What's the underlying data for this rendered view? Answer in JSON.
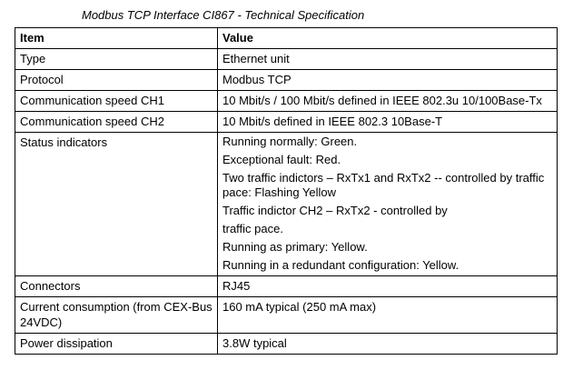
{
  "caption": "Modbus TCP Interface CI867 - Technical Specification",
  "table": {
    "headers": [
      "Item",
      "Value"
    ],
    "rows": [
      {
        "item": "Type",
        "value": [
          "Ethernet unit"
        ]
      },
      {
        "item": "Protocol",
        "value": [
          "Modbus TCP"
        ]
      },
      {
        "item": "Communication speed CH1",
        "value": [
          "10 Mbit/s / 100 Mbit/s defined in IEEE 802.3u 10/100Base-Tx"
        ]
      },
      {
        "item": "Communication speed CH2",
        "value": [
          "10 Mbit/s defined in IEEE 802.3 10Base-T"
        ]
      },
      {
        "item": "Status indicators",
        "value": [
          "Running normally: Green.",
          "Exceptional fault: Red.",
          "Two traffic indictors – RxTx1 and RxTx2 -- controlled by traffic pace: Flashing Yellow",
          "Traffic indictor CH2 – RxTx2 - controlled by",
          "traffic pace.",
          "Running as primary: Yellow.",
          "Running in a redundant configuration: Yellow."
        ]
      },
      {
        "item": "Connectors",
        "value": [
          "RJ45"
        ]
      },
      {
        "item": "Current consumption (from CEX-Bus 24VDC)",
        "value": [
          "160 mA typical (250 mA max)"
        ]
      },
      {
        "item": "Power dissipation",
        "value": [
          "3.8W typical"
        ]
      }
    ]
  }
}
